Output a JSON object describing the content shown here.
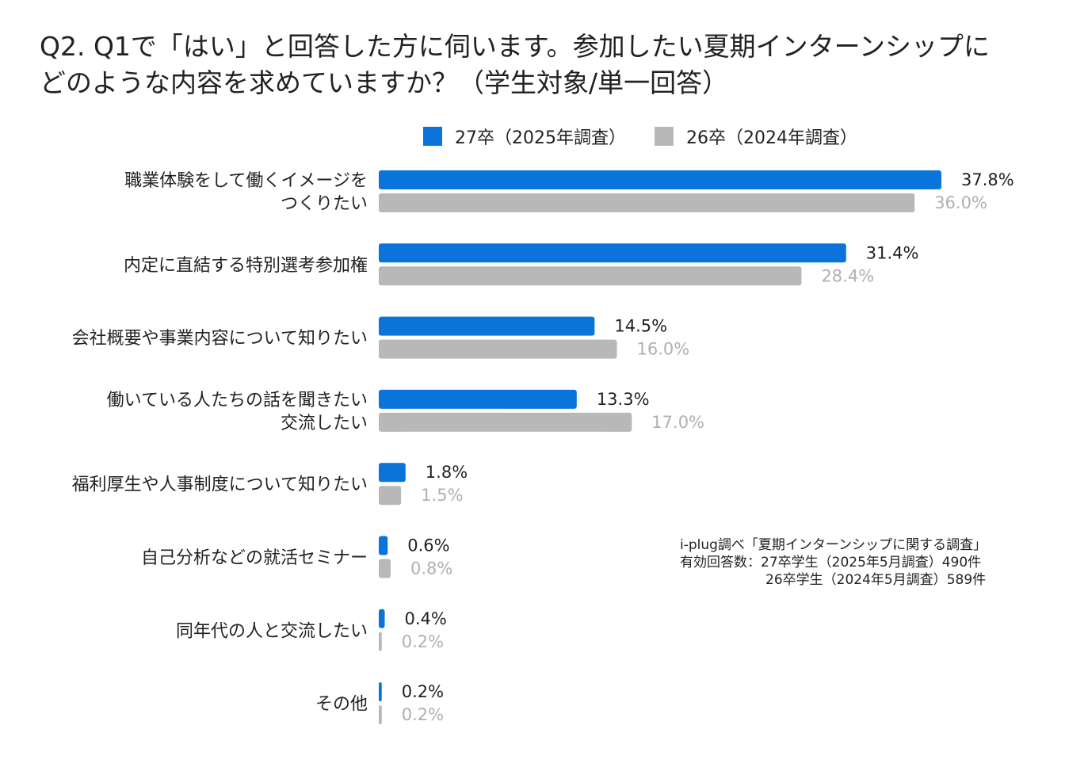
{
  "title": {
    "line1": "Q2. Q1で「はい」と回答した方に伺います。参加したい夏期インターンシップに",
    "line2": "どのような内容を求めていますか？（学生対象/単一回答）"
  },
  "colors": {
    "series_a": "#0a74da",
    "series_b": "#b8b8b8",
    "label_b": "#b0b0b0"
  },
  "note": {
    "line1": "i-plug調べ「夏期インターンシップに関する調査」",
    "line2": "有効回答数：27卒学生（2025年5月調査）490件",
    "line3": "26卒学生（2024年5月調査）589件"
  },
  "chart_data": {
    "type": "bar",
    "orientation": "horizontal",
    "categories": [
      [
        "職業体験をして働くイメージを",
        "つくりたい"
      ],
      [
        "内定に直結する特別選考参加権"
      ],
      [
        "会社概要や事業内容について知りたい"
      ],
      [
        "働いている人たちの話を聞きたい",
        "交流したい"
      ],
      [
        "福利厚生や人事制度について知りたい"
      ],
      [
        "自己分析などの就活セミナー"
      ],
      [
        "同年代の人と交流したい"
      ],
      [
        "その他"
      ]
    ],
    "series": [
      {
        "name": "27卒（2025年調査）",
        "values": [
          37.8,
          31.4,
          14.5,
          13.3,
          1.8,
          0.6,
          0.4,
          0.2
        ],
        "labels": [
          "37.8%",
          "31.4%",
          "14.5%",
          "13.3%",
          "1.8%",
          "0.6%",
          "0.4%",
          "0.2%"
        ]
      },
      {
        "name": "26卒（2024年調査）",
        "values": [
          36.0,
          28.4,
          16.0,
          17.0,
          1.5,
          0.8,
          0.2,
          0.2
        ],
        "labels": [
          "36.0%",
          "28.4%",
          "16.0%",
          "17.0%",
          "1.5%",
          "0.8%",
          "0.2%",
          "0.2%"
        ]
      }
    ],
    "value_unit": "%",
    "xlim": [
      0,
      40
    ],
    "grid": false,
    "legend_position": "top"
  }
}
